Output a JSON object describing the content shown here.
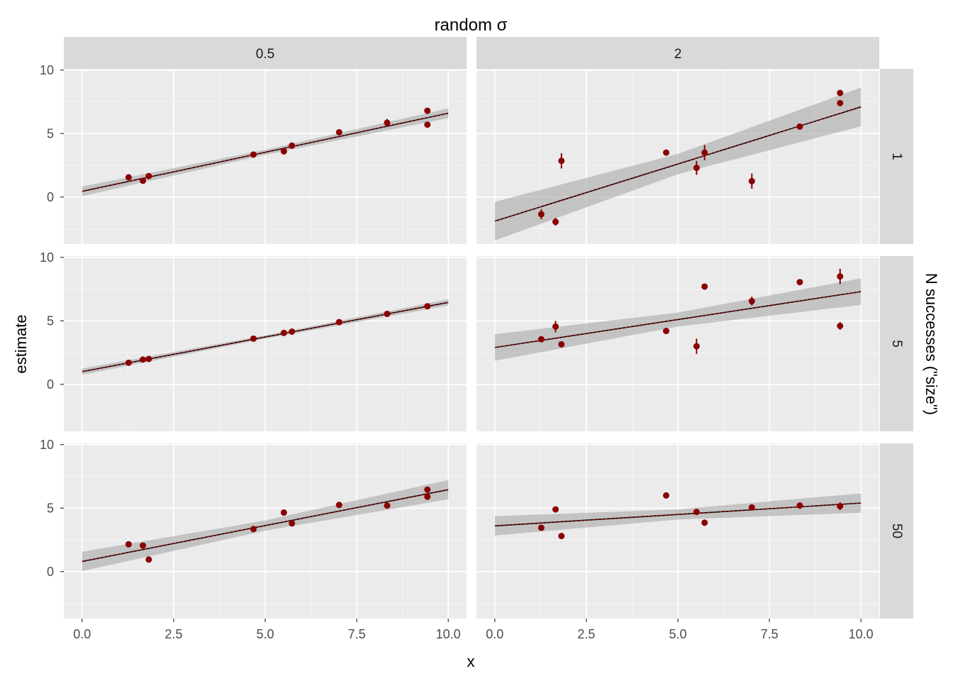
{
  "chart_data": {
    "type": "scatter",
    "title": "random σ",
    "xlabel": "x",
    "ylabel": "estimate",
    "facet_col_label": "random σ",
    "facet_row_label": "N successes (\"size\")",
    "col_facets": [
      "0.5",
      "2"
    ],
    "row_facets": [
      "1",
      "5",
      "50"
    ],
    "xlim": [
      -0.5,
      10.5
    ],
    "ylim": [
      -3.7,
      10.1
    ],
    "xticks": [
      "0.0",
      "2.5",
      "5.0",
      "7.5",
      "10.0"
    ],
    "yticks": [
      "0",
      "5",
      "10"
    ],
    "x": [
      1.27,
      1.66,
      1.82,
      4.68,
      5.51,
      5.73,
      7.02,
      8.33,
      9.43
    ],
    "panels": [
      {
        "row": "1",
        "col": "0.5",
        "points": [
          {
            "x": 1.27,
            "y": 1.55,
            "se": 0.1
          },
          {
            "x": 1.66,
            "y": 1.28,
            "se": 0.1
          },
          {
            "x": 1.82,
            "y": 1.65,
            "se": 0.2
          },
          {
            "x": 4.68,
            "y": 3.35,
            "se": 0.1
          },
          {
            "x": 5.51,
            "y": 3.6,
            "se": 0.1
          },
          {
            "x": 5.73,
            "y": 4.05,
            "se": 0.1
          },
          {
            "x": 7.02,
            "y": 5.1,
            "se": 0.1
          },
          {
            "x": 8.33,
            "y": 5.85,
            "se": 0.3
          },
          {
            "x": 9.43,
            "y": 6.8,
            "se": 0.1
          },
          {
            "x": 9.43,
            "y": 5.7,
            "se": 0.1
          }
        ],
        "fit": {
          "intercept": 0.45,
          "slope": 0.615,
          "band": 0.2
        }
      },
      {
        "row": "1",
        "col": "2",
        "points": [
          {
            "x": 1.27,
            "y": -1.35,
            "se": 0.4
          },
          {
            "x": 1.66,
            "y": -1.95,
            "se": 0.3
          },
          {
            "x": 1.82,
            "y": 2.85,
            "se": 0.6
          },
          {
            "x": 4.68,
            "y": 3.5,
            "se": 0.1
          },
          {
            "x": 5.51,
            "y": 2.3,
            "se": 0.55
          },
          {
            "x": 5.73,
            "y": 3.5,
            "se": 0.6
          },
          {
            "x": 7.02,
            "y": 1.25,
            "se": 0.6
          },
          {
            "x": 8.33,
            "y": 5.55,
            "se": 0.1
          },
          {
            "x": 9.43,
            "y": 8.2,
            "se": 0.1
          },
          {
            "x": 9.43,
            "y": 7.4,
            "se": 0.1
          }
        ],
        "fit": {
          "intercept": -1.9,
          "slope": 0.9,
          "band": 0.8
        }
      },
      {
        "row": "5",
        "col": "0.5",
        "points": [
          {
            "x": 1.27,
            "y": 1.7,
            "se": 0.1
          },
          {
            "x": 1.66,
            "y": 1.95,
            "se": 0.1
          },
          {
            "x": 1.82,
            "y": 2.0,
            "se": 0.1
          },
          {
            "x": 4.68,
            "y": 3.6,
            "se": 0.1
          },
          {
            "x": 5.51,
            "y": 4.05,
            "se": 0.1
          },
          {
            "x": 5.73,
            "y": 4.15,
            "se": 0.1
          },
          {
            "x": 7.02,
            "y": 4.9,
            "se": 0.1
          },
          {
            "x": 8.33,
            "y": 5.55,
            "se": 0.1
          },
          {
            "x": 9.43,
            "y": 6.15,
            "se": 0.1
          }
        ],
        "fit": {
          "intercept": 1.0,
          "slope": 0.545,
          "band": 0.13
        }
      },
      {
        "row": "5",
        "col": "2",
        "points": [
          {
            "x": 1.27,
            "y": 3.55,
            "se": 0.1
          },
          {
            "x": 1.66,
            "y": 4.55,
            "se": 0.45
          },
          {
            "x": 1.82,
            "y": 3.15,
            "se": 0.1
          },
          {
            "x": 4.68,
            "y": 4.2,
            "se": 0.1
          },
          {
            "x": 5.51,
            "y": 3.0,
            "se": 0.6
          },
          {
            "x": 5.73,
            "y": 7.7,
            "se": 0.1
          },
          {
            "x": 7.02,
            "y": 6.55,
            "se": 0.35
          },
          {
            "x": 8.33,
            "y": 8.05,
            "se": 0.1
          },
          {
            "x": 9.43,
            "y": 8.5,
            "se": 0.6
          },
          {
            "x": 9.43,
            "y": 4.6,
            "se": 0.3
          }
        ],
        "fit": {
          "intercept": 2.9,
          "slope": 0.44,
          "band": 0.55
        }
      },
      {
        "row": "50",
        "col": "0.5",
        "points": [
          {
            "x": 1.27,
            "y": 2.15,
            "se": 0.1
          },
          {
            "x": 1.66,
            "y": 2.05,
            "se": 0.1
          },
          {
            "x": 1.82,
            "y": 0.95,
            "se": 0.1
          },
          {
            "x": 4.68,
            "y": 3.35,
            "se": 0.1
          },
          {
            "x": 5.51,
            "y": 4.65,
            "se": 0.1
          },
          {
            "x": 5.73,
            "y": 3.8,
            "se": 0.1
          },
          {
            "x": 7.02,
            "y": 5.25,
            "se": 0.1
          },
          {
            "x": 8.33,
            "y": 5.2,
            "se": 0.1
          },
          {
            "x": 9.43,
            "y": 6.45,
            "se": 0.1
          },
          {
            "x": 9.43,
            "y": 5.9,
            "se": 0.1
          }
        ],
        "fit": {
          "intercept": 0.8,
          "slope": 0.565,
          "band": 0.4
        }
      },
      {
        "row": "50",
        "col": "2",
        "points": [
          {
            "x": 1.27,
            "y": 3.45,
            "se": 0.1
          },
          {
            "x": 1.66,
            "y": 4.9,
            "se": 0.1
          },
          {
            "x": 1.82,
            "y": 2.8,
            "se": 0.1
          },
          {
            "x": 4.68,
            "y": 6.0,
            "se": 0.1
          },
          {
            "x": 5.51,
            "y": 4.7,
            "se": 0.1
          },
          {
            "x": 5.73,
            "y": 3.85,
            "se": 0.25
          },
          {
            "x": 7.02,
            "y": 5.05,
            "se": 0.1
          },
          {
            "x": 8.33,
            "y": 5.2,
            "se": 0.1
          },
          {
            "x": 9.43,
            "y": 5.15,
            "se": 0.3
          }
        ],
        "fit": {
          "intercept": 3.6,
          "slope": 0.18,
          "band": 0.4
        }
      }
    ],
    "colors": {
      "point": "#8B0000",
      "fit_line": "#000000",
      "fit_line_overlay": "#FF0000",
      "band": "#A9A9A9",
      "panel_bg": "#EBEBEB",
      "strip_bg": "#D9D9D9",
      "grid_major": "#FFFFFF",
      "grid_minor": "#F5F5F5",
      "axis_text": "#4D4D4D",
      "strip_text": "#1A1A1A"
    },
    "grid": true
  }
}
